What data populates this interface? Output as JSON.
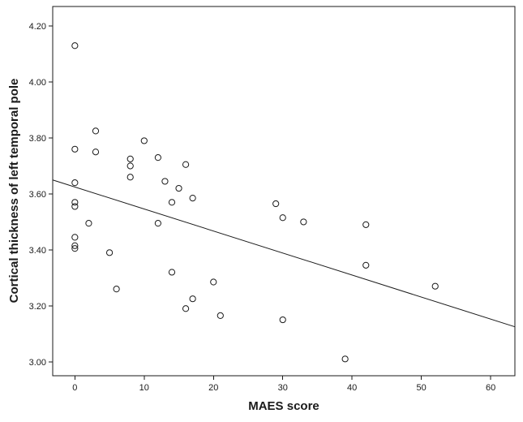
{
  "chart_data": {
    "type": "scatter",
    "xlabel": "MAES score",
    "ylabel": "Cortical thickness of left temporal pole",
    "xlim": [
      -3.2,
      63.5
    ],
    "ylim": [
      2.95,
      4.27
    ],
    "x_ticks": [
      "0",
      "10",
      "20",
      "30",
      "40",
      "50",
      "60"
    ],
    "y_ticks": [
      "3.00",
      "3.20",
      "3.40",
      "3.60",
      "3.80",
      "4.00",
      "4.20"
    ],
    "grid": false,
    "legend": "none",
    "points": [
      {
        "x": 0,
        "y": 4.13
      },
      {
        "x": 0,
        "y": 3.76
      },
      {
        "x": 0,
        "y": 3.64
      },
      {
        "x": 0,
        "y": 3.57
      },
      {
        "x": 0,
        "y": 3.555
      },
      {
        "x": 0,
        "y": 3.445
      },
      {
        "x": 0,
        "y": 3.415
      },
      {
        "x": 0,
        "y": 3.405
      },
      {
        "x": 2,
        "y": 3.495
      },
      {
        "x": 3,
        "y": 3.825
      },
      {
        "x": 3,
        "y": 3.75
      },
      {
        "x": 5,
        "y": 3.39
      },
      {
        "x": 6,
        "y": 3.26
      },
      {
        "x": 8,
        "y": 3.725
      },
      {
        "x": 8,
        "y": 3.7
      },
      {
        "x": 8,
        "y": 3.66
      },
      {
        "x": 10,
        "y": 3.79
      },
      {
        "x": 12,
        "y": 3.73
      },
      {
        "x": 12,
        "y": 3.495
      },
      {
        "x": 13,
        "y": 3.645
      },
      {
        "x": 14,
        "y": 3.57
      },
      {
        "x": 14,
        "y": 3.32
      },
      {
        "x": 15,
        "y": 3.62
      },
      {
        "x": 16,
        "y": 3.705
      },
      {
        "x": 16,
        "y": 3.19
      },
      {
        "x": 17,
        "y": 3.585
      },
      {
        "x": 17,
        "y": 3.225
      },
      {
        "x": 20,
        "y": 3.285
      },
      {
        "x": 21,
        "y": 3.165
      },
      {
        "x": 29,
        "y": 3.565
      },
      {
        "x": 30,
        "y": 3.515
      },
      {
        "x": 30,
        "y": 3.15
      },
      {
        "x": 33,
        "y": 3.5
      },
      {
        "x": 39,
        "y": 3.01
      },
      {
        "x": 42,
        "y": 3.49
      },
      {
        "x": 42,
        "y": 3.345
      },
      {
        "x": 52,
        "y": 3.27
      }
    ],
    "fit_line": {
      "x1": -3.2,
      "y1": 3.65,
      "x2": 63.5,
      "y2": 3.125
    }
  }
}
